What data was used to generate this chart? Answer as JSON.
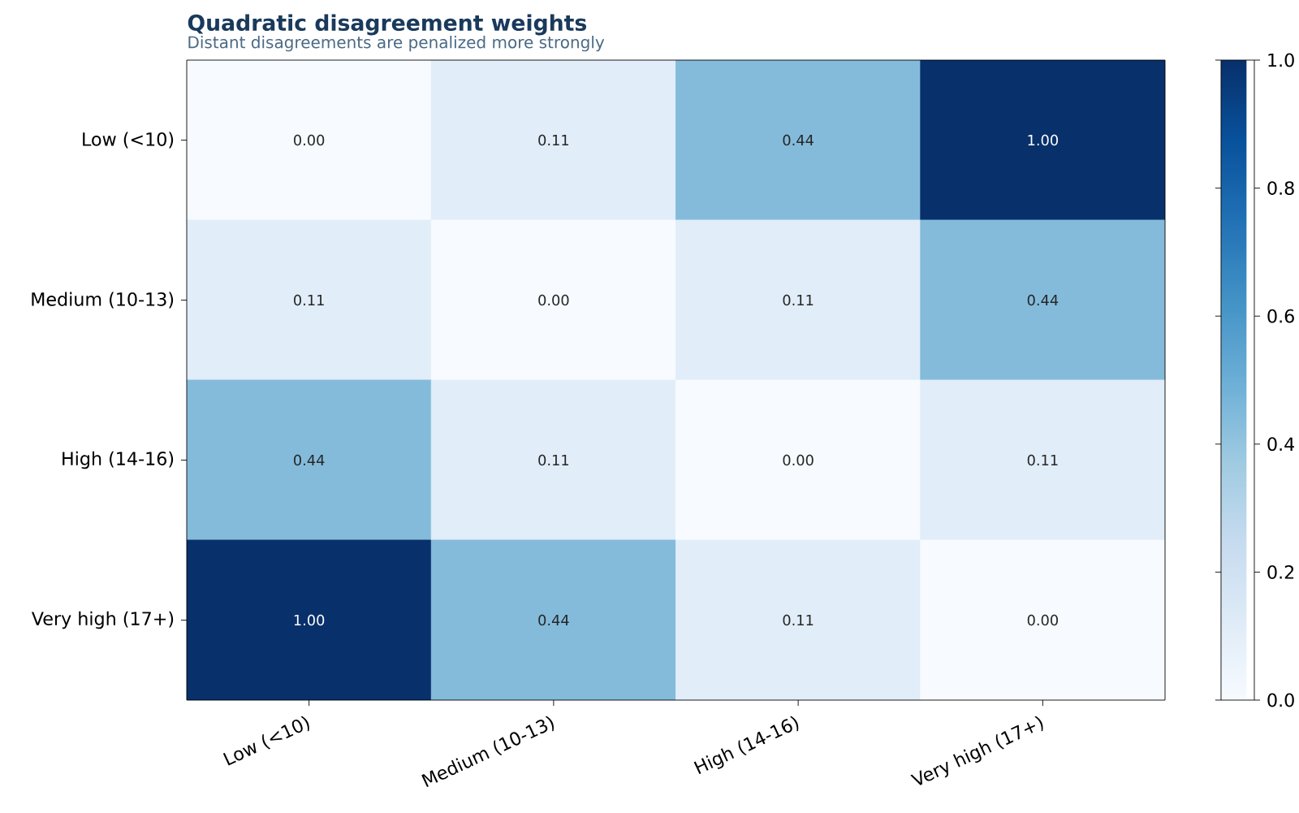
{
  "chart_data": {
    "type": "heatmap",
    "title": "Quadratic disagreement weights",
    "subtitle": "Distant disagreements are penalized more strongly",
    "categories": [
      "Low (<10)",
      "Medium (10-13)",
      "High (14-16)",
      "Very high (17+)"
    ],
    "y_categories": [
      "Low (<10)",
      "Medium (10-13)",
      "High (14-16)",
      "Very high (17+)"
    ],
    "cells": [
      [
        0,
        0.11,
        0.44,
        1
      ],
      [
        0.11,
        0,
        0.11,
        0.44
      ],
      [
        0.44,
        0.11,
        0,
        0.11
      ],
      [
        1,
        0.44,
        0.11,
        0
      ]
    ],
    "cell_labels": [
      [
        "0.00",
        "0.11",
        "0.44",
        "1.00"
      ],
      [
        "0.11",
        "0.00",
        "0.11",
        "0.44"
      ],
      [
        "0.44",
        "0.11",
        "0.00",
        "0.11"
      ],
      [
        "1.00",
        "0.44",
        "0.11",
        "0.00"
      ]
    ],
    "clim": [
      0,
      1
    ],
    "cticks": [
      {
        "value": 0,
        "label": "0.0"
      },
      {
        "value": 0.2,
        "label": "0.2"
      },
      {
        "value": 0.4,
        "label": "0.4"
      },
      {
        "value": 0.6,
        "label": "0.6"
      },
      {
        "value": 0.8,
        "label": "0.8"
      },
      {
        "value": 1,
        "label": "1.0"
      }
    ]
  }
}
